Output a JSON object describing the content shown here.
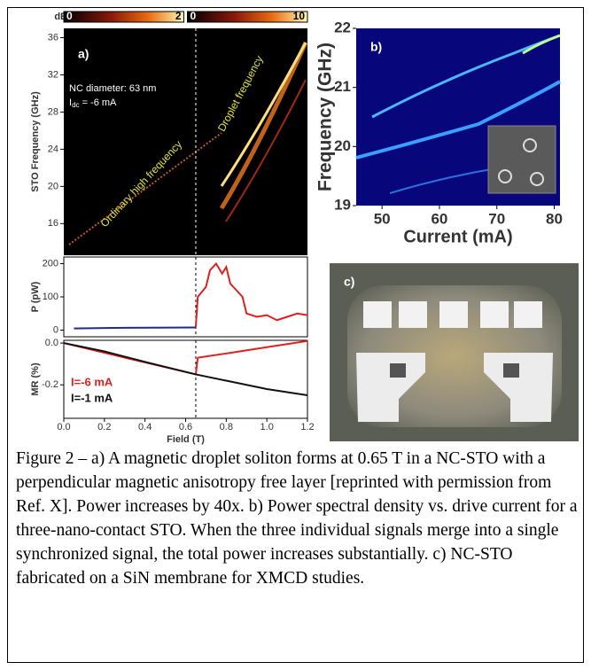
{
  "chart_data": [
    {
      "type": "heatmap",
      "panel_label": "a)",
      "y_label": "STO Frequency (GHz)",
      "xlim": [
        0,
        1.2
      ],
      "ylim": [
        12.6,
        37
      ],
      "yticks": [
        16,
        20,
        24,
        28,
        32,
        36
      ],
      "colorbar_unit": "dB",
      "colorbars": [
        {
          "min": 0,
          "max": 2
        },
        {
          "min": 0,
          "max": 10
        }
      ],
      "annotations": [
        "NC diameter: 63 nm"
      ],
      "current": {
        "symbol": "I",
        "subscript": "dc",
        "text": " = -6 mA"
      },
      "left_label": "Ordinary high frequency",
      "right_label": "Droplet frequency",
      "divider_x": 0.65
    },
    {
      "type": "line",
      "y_label": "P (pW)",
      "xlim": [
        0,
        1.2
      ],
      "ylim": [
        -20,
        220
      ],
      "yticks": [
        0,
        100,
        200
      ],
      "divider_x": 0.65,
      "series": [
        {
          "color": "#1f2a8c",
          "x": [
            0.05,
            0.3,
            0.65
          ],
          "values": [
            5,
            7,
            8
          ]
        },
        {
          "color": "#e02020",
          "x": [
            0.65,
            0.66,
            0.7,
            0.72,
            0.75,
            0.78,
            0.8,
            0.82,
            0.85,
            0.88,
            0.9,
            0.95,
            1.0,
            1.05,
            1.1,
            1.15,
            1.2
          ],
          "values": [
            10,
            100,
            130,
            180,
            200,
            170,
            190,
            140,
            120,
            100,
            50,
            40,
            45,
            30,
            40,
            50,
            45
          ]
        }
      ]
    },
    {
      "type": "line",
      "y_label": "MR (%)",
      "x_label": "Field (T)",
      "xlim": [
        0,
        1.2
      ],
      "ylim": [
        -0.36,
        0.013
      ],
      "yticks": [
        {
          "value": 0,
          "label": "0.0"
        },
        {
          "value": -0.2,
          "label": "-0.2"
        }
      ],
      "xticks": [
        {
          "value": 0,
          "label": "0.0"
        },
        0.2,
        0.4,
        0.6,
        0.8,
        {
          "value": 1,
          "label": "1.0"
        },
        1.2
      ],
      "divider_x": 0.65,
      "series": [
        {
          "name": "I=-6 mA",
          "color": "#e02020",
          "x": [
            0,
            0.3,
            0.65,
            0.66,
            0.8,
            1.0,
            1.2
          ],
          "values": [
            0,
            -0.07,
            -0.15,
            -0.07,
            -0.05,
            -0.02,
            0.01
          ]
        },
        {
          "name": "I=-1 mA",
          "color": "#111111",
          "x": [
            0,
            0.2,
            0.4,
            0.65,
            0.8,
            1.0,
            1.2
          ],
          "values": [
            0,
            -0.04,
            -0.09,
            -0.15,
            -0.18,
            -0.22,
            -0.25
          ]
        }
      ]
    },
    {
      "type": "heatmap",
      "panel_label": "b)",
      "x_label": "Current (mA)",
      "y_label": "Frequency (GHz)",
      "xlim": [
        45.5,
        81
      ],
      "ylim": [
        19,
        22
      ],
      "xticks": [
        50,
        60,
        70,
        80
      ],
      "yticks": [
        19,
        20,
        21,
        22
      ]
    },
    {
      "type": "image",
      "panel_label": "c)"
    }
  ],
  "caption": "Figure 2 – a) A magnetic droplet soliton forms at 0.65 T in a NC-STO with a perpendicular magnetic anisotropy free layer [reprinted with permission from Ref. X]. Power increases by 40x. b) Power spectral density vs. drive current for a three-nano-contact STO. When the three individual signals merge into a single synchronized signal, the total power increases substantially. c) NC-STO fabricated on a SiN membrane for XMCD studies."
}
